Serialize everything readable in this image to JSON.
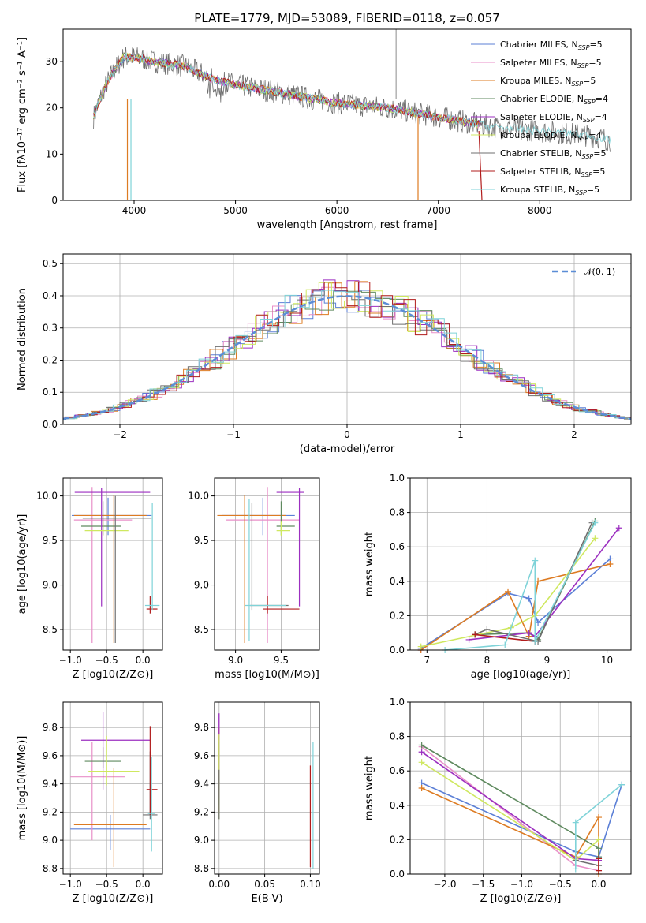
{
  "title": "PLATE=1779, MJD=53089, FIBERID=0118, z=0.057",
  "colors": [
    "#5b7fd6",
    "#e88fc8",
    "#dd7b22",
    "#5f8a5f",
    "#9c2fc0",
    "#cfe860",
    "#6f6f6f",
    "#b11c1c",
    "#7fd3d8"
  ],
  "legend": [
    {
      "name": "Chabrier MILES",
      "nssp": "5"
    },
    {
      "name": "Salpeter MILES",
      "nssp": "5"
    },
    {
      "name": "Kroupa MILES",
      "nssp": "5"
    },
    {
      "name": "Chabrier ELODIE",
      "nssp": "4"
    },
    {
      "name": "Salpeter ELODIE",
      "nssp": "4"
    },
    {
      "name": "Kroupa ELODIE",
      "nssp": "4"
    },
    {
      "name": "Chabrier STELIB",
      "nssp": "5"
    },
    {
      "name": "Salpeter STELIB",
      "nssp": "5"
    },
    {
      "name": "Kroupa STELIB",
      "nssp": "5"
    }
  ],
  "chart_data": [
    {
      "id": "spectrum",
      "type": "line",
      "title": "PLATE=1779, MJD=53089, FIBERID=0118, z=0.057",
      "xlabel": "wavelength [Angstrom, rest frame]",
      "ylabel": "Flux [fλ10⁻¹⁷ erg cm⁻² s⁻¹ A⁻¹]",
      "xlim": [
        3300,
        8900
      ],
      "ylim": [
        0,
        37
      ],
      "xticks": [
        4000,
        5000,
        6000,
        7000,
        8000
      ],
      "yticks": [
        0,
        10,
        20,
        30
      ],
      "continuum": {
        "x": [
          3600,
          3700,
          3800,
          3900,
          4000,
          4200,
          4500,
          4800,
          5000,
          5500,
          6000,
          6500,
          7000,
          7500,
          8000,
          8500,
          8700
        ],
        "y": [
          18,
          24,
          28,
          31,
          31,
          30,
          29,
          26,
          25,
          23,
          21,
          20,
          18,
          16,
          15,
          14,
          13
        ]
      },
      "legend_position": "upper right"
    },
    {
      "id": "residual-hist",
      "type": "line",
      "xlabel": "(data-model)/error",
      "ylabel": "Normed distribution",
      "xlim": [
        -2.5,
        2.5
      ],
      "ylim": [
        0,
        0.53
      ],
      "xticks": [
        -2,
        -1,
        0,
        1,
        2
      ],
      "yticks": [
        0.0,
        0.1,
        0.2,
        0.3,
        0.4,
        0.5
      ],
      "reference": {
        "name": "N(0,1)",
        "mean": 0,
        "sigma": 1
      },
      "grid": true,
      "legend_position": "upper right"
    },
    {
      "id": "age-vs-z",
      "type": "scatter",
      "xlabel": "Z [log10(Z/Z⊙)]",
      "ylabel": "age  [log10(age/yr)]",
      "xlim": [
        -1.1,
        0.27
      ],
      "ylim": [
        8.27,
        10.2
      ],
      "xticks": [
        -1.0,
        -0.5,
        0.0
      ],
      "yticks": [
        8.5,
        9.0,
        9.5,
        10.0
      ],
      "grid": true,
      "points": [
        {
          "x": -0.48,
          "y": 9.78,
          "xerr": [
            0.5,
            0.6
          ],
          "yerr": [
            0.22,
            0.2
          ]
        },
        {
          "x": -0.7,
          "y": 9.73,
          "xerr": [
            0.25,
            0.55
          ],
          "yerr": [
            1.38,
            0.37
          ]
        },
        {
          "x": -0.4,
          "y": 9.78,
          "xerr": [
            0.55,
            0.45
          ],
          "yerr": [
            1.43,
            0.23
          ]
        },
        {
          "x": -0.55,
          "y": 9.66,
          "xerr": [
            0.3,
            0.25
          ],
          "yerr": [
            0.1,
            0.28
          ]
        },
        {
          "x": -0.57,
          "y": 10.04,
          "xerr": [
            0.37,
            0.67
          ],
          "yerr": [
            1.28,
            0.05
          ]
        },
        {
          "x": -0.55,
          "y": 9.61,
          "xerr": [
            0.25,
            0.35
          ],
          "yerr": [
            0.06,
            0.1
          ]
        },
        {
          "x": -0.38,
          "y": 9.75,
          "xerr": [
            0.45,
            0.5
          ],
          "yerr": [
            1.4,
            0.25
          ]
        },
        {
          "x": 0.1,
          "y": 8.73,
          "xerr": [
            0.05,
            0.1
          ],
          "yerr": [
            0.05,
            0.15
          ]
        },
        {
          "x": 0.13,
          "y": 8.77,
          "xerr": [
            0.1,
            0.1
          ],
          "yerr": [
            0.05,
            1.15
          ]
        }
      ]
    },
    {
      "id": "age-vs-mass",
      "type": "scatter",
      "xlabel": "mass [log10(M/M⊙)]",
      "ylabel": "",
      "xlim": [
        8.77,
        9.92
      ],
      "ylim": [
        8.27,
        10.2
      ],
      "xticks": [
        9.0,
        9.5
      ],
      "yticks": [
        8.5,
        9.0,
        9.5,
        10.0
      ],
      "grid": true,
      "points": [
        {
          "x": 9.3,
          "y": 9.78,
          "xerr": [
            0.45,
            0.35
          ],
          "yerr": [
            0.22,
            0.2
          ]
        },
        {
          "x": 9.35,
          "y": 9.73,
          "xerr": [
            0.45,
            0.35
          ],
          "yerr": [
            1.38,
            0.37
          ]
        },
        {
          "x": 9.1,
          "y": 9.78,
          "xerr": [
            0.3,
            0.45
          ],
          "yerr": [
            1.43,
            0.23
          ]
        },
        {
          "x": 9.5,
          "y": 9.66,
          "xerr": [
            0.05,
            0.15
          ],
          "yerr": [
            0.1,
            0.28
          ]
        },
        {
          "x": 9.7,
          "y": 10.04,
          "xerr": [
            0.25,
            0.05
          ],
          "yerr": [
            1.28,
            0.05
          ]
        },
        {
          "x": 9.5,
          "y": 9.61,
          "xerr": [
            0.05,
            0.1
          ],
          "yerr": [
            0.06,
            0.1
          ]
        },
        {
          "x": 9.18,
          "y": 8.77,
          "xerr": [
            0.02,
            0.4
          ],
          "yerr": [
            0.05,
            1.15
          ]
        },
        {
          "x": 9.35,
          "y": 8.73,
          "xerr": [
            0.05,
            0.35
          ],
          "yerr": [
            0.05,
            0.15
          ]
        },
        {
          "x": 9.15,
          "y": 8.77,
          "xerr": [
            0.05,
            0.4
          ],
          "yerr": [
            0.4,
            1.2
          ]
        }
      ]
    },
    {
      "id": "weight-vs-age",
      "type": "line",
      "xlabel": "age  [log10(age/yr)]",
      "ylabel": "mass weight",
      "xlim": [
        6.72,
        10.4
      ],
      "ylim": [
        0,
        1.0
      ],
      "xticks": [
        7,
        8,
        9,
        10
      ],
      "yticks": [
        0.0,
        0.2,
        0.4,
        0.6,
        0.8,
        1.0
      ],
      "grid": true,
      "series": [
        {
          "x": [
            6.9,
            8.35,
            8.7,
            8.85,
            10.05
          ],
          "y": [
            0.01,
            0.33,
            0.3,
            0.16,
            0.53
          ]
        },
        {
          "x": 6.9,
          "y": 0
        },
        {
          "x": [
            6.9,
            8.35,
            8.7,
            8.85,
            10.05
          ],
          "y": [
            0.0,
            0.34,
            0.08,
            0.4,
            0.5
          ]
        },
        {
          "x": [
            7.8,
            8.7,
            8.85,
            9.8
          ],
          "y": [
            0.09,
            0.1,
            0.06,
            0.75
          ]
        },
        {
          "x": [
            7.7,
            8.7,
            8.8,
            10.2
          ],
          "y": [
            0.06,
            0.1,
            0.08,
            0.71
          ]
        },
        {
          "x": [
            6.9,
            8.4,
            8.8,
            9.8
          ],
          "y": [
            0.02,
            0.13,
            0.2,
            0.65
          ]
        },
        {
          "x": [
            7.8,
            8.0,
            8.85,
            9.75
          ],
          "y": [
            0.09,
            0.12,
            0.05,
            0.74
          ]
        },
        {
          "x": [
            7.8,
            8.8
          ],
          "y": [
            0.09,
            0.05
          ]
        },
        {
          "x": [
            7.3,
            8.3,
            8.8,
            8.8,
            9.8
          ],
          "y": [
            0.0,
            0.03,
            0.52,
            0.05,
            0.74
          ]
        }
      ]
    },
    {
      "id": "mass-vs-z",
      "type": "scatter",
      "xlabel": "Z [log10(Z/Z⊙)]",
      "ylabel": "mass [log10(M/M⊙)]",
      "xlim": [
        -1.1,
        0.27
      ],
      "ylim": [
        8.76,
        9.98
      ],
      "xticks": [
        -1.0,
        -0.5,
        0.0
      ],
      "yticks": [
        8.8,
        9.0,
        9.2,
        9.4,
        9.6,
        9.8
      ],
      "grid": true,
      "points": [
        {
          "x": -0.45,
          "y": 9.08,
          "xerr": [
            0.55,
            0.55
          ],
          "yerr": [
            0.15,
            0.1
          ]
        },
        {
          "x": -0.7,
          "y": 9.45,
          "xerr": [
            0.3,
            0.45
          ],
          "yerr": [
            0.45,
            0.25
          ]
        },
        {
          "x": -0.4,
          "y": 9.11,
          "xerr": [
            0.55,
            0.45
          ],
          "yerr": [
            0.3,
            0.4
          ]
        },
        {
          "x": -0.55,
          "y": 9.56,
          "xerr": [
            0.25,
            0.25
          ],
          "yerr": [
            0.05,
            0.1
          ]
        },
        {
          "x": -0.55,
          "y": 9.71,
          "xerr": [
            0.3,
            0.65
          ],
          "yerr": [
            0.35,
            0.2
          ]
        },
        {
          "x": -0.5,
          "y": 9.49,
          "xerr": [
            0.25,
            0.45
          ],
          "yerr": [
            0.1,
            0.25
          ]
        },
        {
          "x": 0.1,
          "y": 9.18,
          "xerr": [
            0.1,
            0.1
          ],
          "yerr": [
            0.03,
            0.45
          ]
        },
        {
          "x": 0.1,
          "y": 9.36,
          "xerr": [
            0.05,
            0.1
          ],
          "yerr": [
            0.18,
            0.45
          ]
        },
        {
          "x": 0.12,
          "y": 9.19,
          "xerr": [
            0.05,
            0.05
          ],
          "yerr": [
            0.27,
            0.4
          ]
        }
      ]
    },
    {
      "id": "mass-vs-ebv",
      "type": "scatter",
      "xlabel": "E(B-V)",
      "ylabel": "",
      "xlim": [
        -0.005,
        0.11
      ],
      "ylim": [
        8.76,
        9.98
      ],
      "xticks": [
        0.0,
        0.05,
        0.1
      ],
      "yticks": [
        8.8,
        9.0,
        9.2,
        9.4,
        9.6,
        9.8
      ],
      "grid": true,
      "points": [
        {
          "x": 0.0,
          "y": 9.5,
          "yerr": [
            0.35,
            0.4
          ]
        },
        {
          "x": 0.0,
          "y": 9.55,
          "yerr": [
            0.3,
            0.35
          ]
        },
        {
          "x": 0.0,
          "y": 9.5,
          "yerr": [
            0.3,
            0.3
          ]
        },
        {
          "x": 0.0,
          "y": 9.4,
          "yerr": [
            0.15,
            0.3
          ]
        },
        {
          "x": 0.0,
          "y": 9.6,
          "yerr": [
            0.3,
            0.3
          ]
        },
        {
          "x": 0.0,
          "y": 9.5,
          "yerr": [
            0.35,
            0.25
          ]
        },
        {
          "x": 0.0,
          "y": 9.3,
          "yerr": [
            0.15,
            0.2
          ]
        },
        {
          "x": 0.1,
          "y": 9.17,
          "yerr": [
            0.36,
            0.36
          ]
        },
        {
          "x": 0.103,
          "y": 9.3,
          "yerr": [
            0.5,
            0.4
          ]
        }
      ]
    },
    {
      "id": "weight-vs-z",
      "type": "line",
      "xlabel": "Z [log10(Z/Z⊙)]",
      "ylabel": "mass weight",
      "xlim": [
        -2.45,
        0.42
      ],
      "ylim": [
        0,
        1.0
      ],
      "xticks": [
        -2.0,
        -1.5,
        -1.0,
        -0.5,
        0.0
      ],
      "yticks": [
        0.0,
        0.2,
        0.4,
        0.6,
        0.8,
        1.0
      ],
      "grid": true,
      "series": [
        {
          "x": [
            -2.3,
            -0.3,
            0.0,
            0.3
          ],
          "y": [
            0.53,
            0.13,
            0.1,
            0.52
          ]
        },
        {
          "x": [
            -2.3,
            -0.3,
            0.0
          ],
          "y": [
            0.74,
            0.05,
            0.02
          ]
        },
        {
          "x": [
            -2.3,
            -0.3,
            0.0,
            0.0
          ],
          "y": [
            0.5,
            0.1,
            0.33,
            0.0
          ]
        },
        {
          "x": [
            -2.3,
            0.0,
            0.0
          ],
          "y": [
            0.75,
            0.15,
            0.1
          ]
        },
        {
          "x": [
            -2.3,
            -0.3,
            0.0
          ],
          "y": [
            0.71,
            0.09,
            0.08
          ]
        },
        {
          "x": [
            -2.3,
            -0.3,
            0.0
          ],
          "y": [
            0.65,
            0.08,
            0.2
          ]
        },
        {
          "x": [
            -0.3,
            0.0
          ],
          "y": [
            0.08,
            0.05
          ]
        },
        {
          "x": [
            0.0,
            0.0
          ],
          "y": [
            0.09,
            0.02
          ]
        },
        {
          "x": [
            -0.3,
            -0.3,
            0.3
          ],
          "y": [
            0.03,
            0.3,
            0.52
          ]
        }
      ]
    }
  ]
}
